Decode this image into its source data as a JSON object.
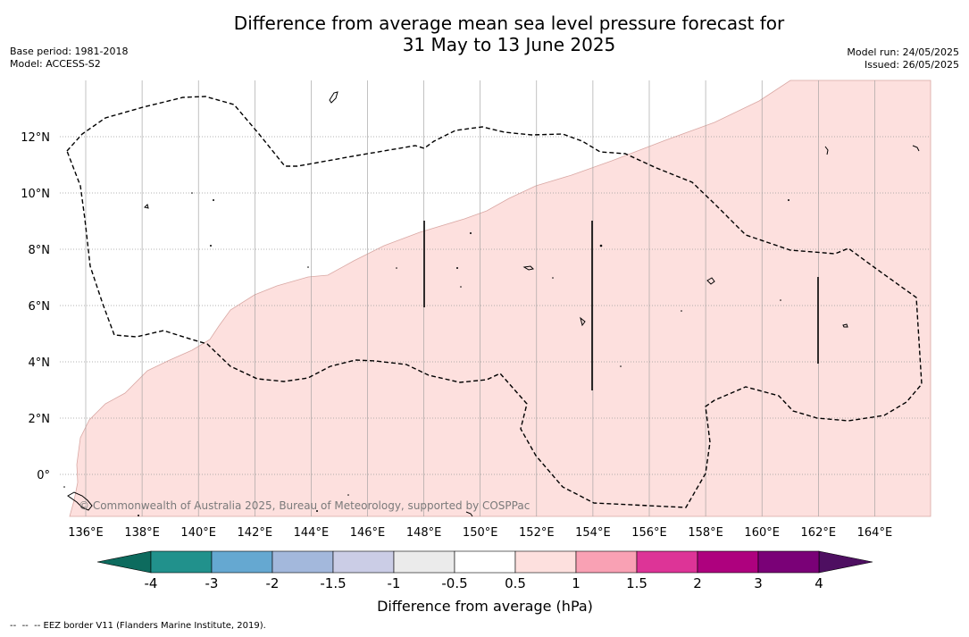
{
  "title": {
    "line1": "Difference from average mean sea level pressure forecast for",
    "line2": "31 May to 13 June 2025"
  },
  "meta_left": {
    "base_period": "Base period: 1981-2018",
    "model": "Model: ACCESS-S2"
  },
  "meta_right": {
    "model_run": "Model run: 24/05/2025",
    "issued": "Issued: 26/05/2025"
  },
  "copyright": "© Commonwealth of Australia 2025, Bureau of Meteorology, supported by COSPPac",
  "footnote": "--  --  -- EEZ border V11 (Flanders Marine Institute, 2019).",
  "map": {
    "lon_ticks": [
      "136°E",
      "138°E",
      "140°E",
      "142°E",
      "144°E",
      "146°E",
      "148°E",
      "150°E",
      "152°E",
      "154°E",
      "156°E",
      "158°E",
      "160°E",
      "162°E",
      "164°E"
    ],
    "lat_ticks": [
      "12°N",
      "10°N",
      "8°N",
      "6°N",
      "4°N",
      "2°N",
      "0°"
    ],
    "fill_category": "0.5 to 1",
    "colors": {
      "fill": "#fde0de",
      "fill_edge": "#d9a8a4",
      "grid": "#9a9a9a",
      "eez": "#000000"
    }
  },
  "colorbar": {
    "title": "Difference from average (hPa)",
    "ticks": [
      "-4",
      "-3",
      "-2",
      "-1.5",
      "-1",
      "-0.5",
      "0.5",
      "1",
      "1.5",
      "2",
      "3",
      "4"
    ],
    "under_color": "#0d6b5e",
    "over_color": "#4e0f61",
    "colors": [
      "#21918c",
      "#65a8d1",
      "#a3b8dc",
      "#cbcde6",
      "#ebebeb",
      "#ffffff",
      "#fde0de",
      "#f9a1b4",
      "#dd3497",
      "#ae017e",
      "#7a0177"
    ]
  }
}
